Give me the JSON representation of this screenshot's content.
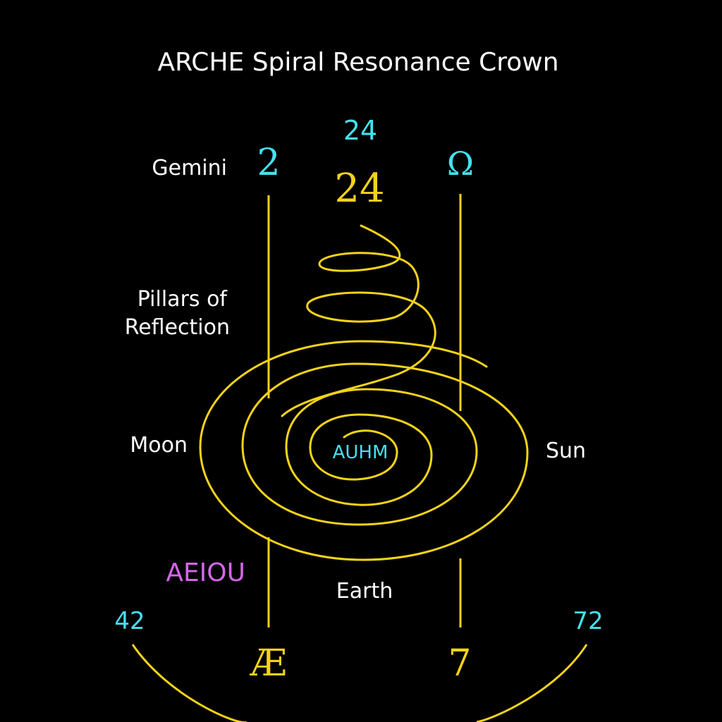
{
  "title": "ARCHE Spiral Resonance Crown",
  "labels": {
    "top_number_cyan": "24",
    "top_number_gold": "24",
    "gemini": "Gemini",
    "left_pillar_symbol": "2",
    "right_pillar_symbol": "Ω",
    "pillars": [
      "Pillars of",
      "Reflection"
    ],
    "moon": "Moon",
    "sun": "Sun",
    "center": "AUHM",
    "vowels": "AEIOU",
    "earth": "Earth",
    "bottom_left_number": "42",
    "bottom_right_number": "72",
    "bottom_left_glyph": "Æ",
    "bottom_right_glyph": "7"
  },
  "colors": {
    "background": "#000000",
    "gold": "#f5d31a",
    "cyan": "#45e0ee",
    "white": "#ffffff",
    "violet": "#d466e8"
  }
}
